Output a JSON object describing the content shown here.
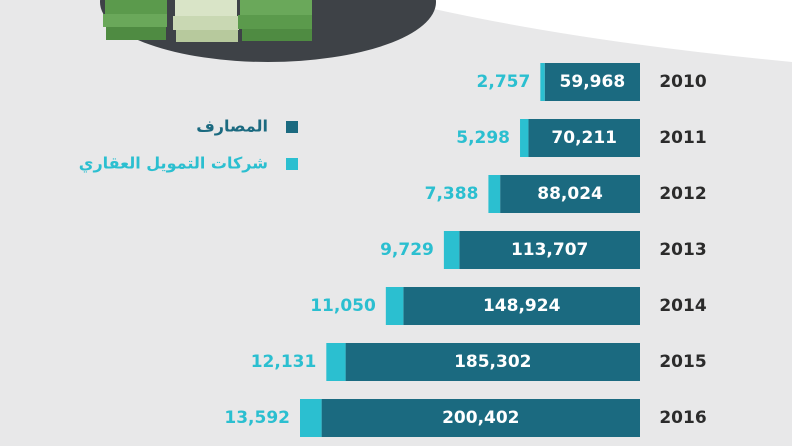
{
  "chart_data": {
    "type": "bar",
    "orientation": "horizontal",
    "stacked": true,
    "categories": [
      "2010",
      "2011",
      "2012",
      "2013",
      "2014",
      "2015",
      "2016"
    ],
    "series": [
      {
        "name": "المصارف",
        "color": "#1b6a80",
        "values": [
          59968,
          70211,
          88024,
          113707,
          148924,
          185302,
          200402
        ],
        "value_labels": [
          "59,968",
          "70,211",
          "88,024",
          "113,707",
          "148,924",
          "185,302",
          "200,402"
        ]
      },
      {
        "name": "شركات التمويل العقاري",
        "color": "#2bbfd0",
        "values": [
          2757,
          5298,
          7388,
          9729,
          11050,
          12131,
          13592
        ],
        "value_labels": [
          "2,757",
          "5,298",
          "7,388",
          "9,729",
          "11,050",
          "12,131",
          "13,592"
        ]
      }
    ]
  }
}
